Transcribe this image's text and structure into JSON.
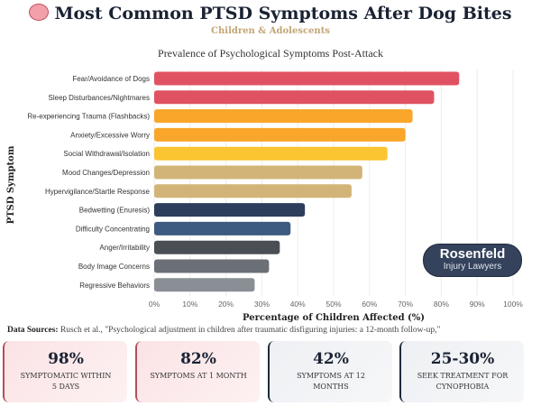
{
  "header": {
    "title": "Most Common PTSD Symptoms After Dog Bites",
    "subtitle": "Children & Adolescents",
    "icon": "brain-icon"
  },
  "chart_data": {
    "type": "bar",
    "orientation": "horizontal",
    "title": "Prevalence of Psychological Symptoms Post-Attack",
    "xlabel": "Percentage of Children Affected (%)",
    "ylabel": "PTSD Symptom",
    "xlim": [
      0,
      100
    ],
    "xticks": [
      "0%",
      "10%",
      "20%",
      "30%",
      "40%",
      "50%",
      "60%",
      "70%",
      "80%",
      "90%",
      "100%"
    ],
    "grid": "vertical",
    "categories": [
      "Fear/Avoidance of Dogs",
      "Sleep Disturbances/Nightmares",
      "Re-experiencing Trauma (Flashbacks)",
      "Anxiety/Excessive Worry",
      "Social Withdrawal/Isolation",
      "Mood Changes/Depression",
      "Hypervigilance/Startle Response",
      "Bedwetting (Enuresis)",
      "Difficulty Concentrating",
      "Anger/Irritability",
      "Body Image Concerns",
      "Regressive Behaviors"
    ],
    "values": [
      85,
      78,
      72,
      70,
      65,
      58,
      55,
      42,
      38,
      35,
      32,
      28
    ],
    "colors": [
      "#e05262",
      "#e05262",
      "#f9a62a",
      "#f9a62a",
      "#fbc531",
      "#d2b478",
      "#d2b478",
      "#2c3e5c",
      "#3d5a80",
      "#4a4e55",
      "#6b6f76",
      "#8a8f96"
    ]
  },
  "logo": {
    "line1": "Rosenfeld",
    "line2": "Injury Lawyers"
  },
  "sources": {
    "label": "Data Sources:",
    "text": "Rusch et al., \"Psychological adjustment in children after traumatic disfiguring injuries: a 12-month follow-up,\""
  },
  "stats": [
    {
      "value": "98%",
      "label": "SYMPTOMATIC WITHIN 5 DAYS"
    },
    {
      "value": "82%",
      "label": "SYMPTOMS AT 1 MONTH"
    },
    {
      "value": "42%",
      "label": "SYMPTOMS AT 12 MONTHS"
    },
    {
      "value": "25-30%",
      "label": "SEEK TREATMENT FOR CYNOPHOBIA"
    }
  ]
}
